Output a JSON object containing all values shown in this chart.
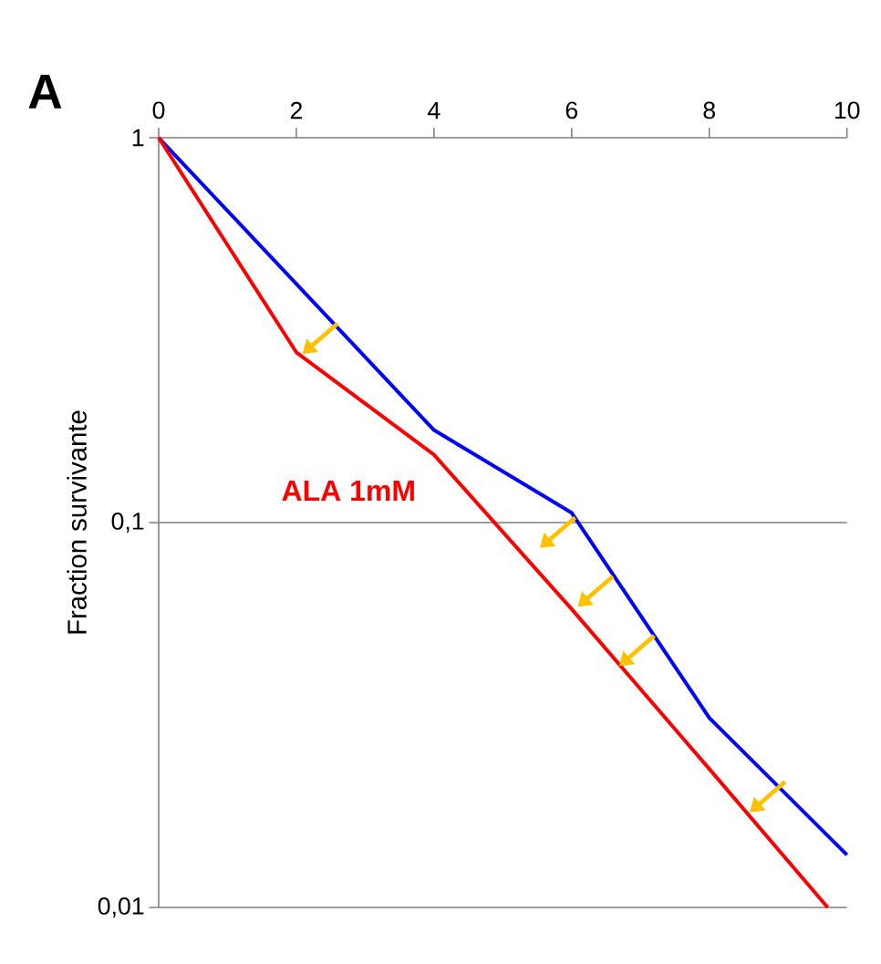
{
  "chart_data": {
    "type": "line",
    "annotations": [
      "A"
    ],
    "ylabel": "Fraction survivante",
    "log": "y",
    "grid": "y",
    "xlim": [
      0,
      10
    ],
    "xticks": [
      0,
      2,
      4,
      6,
      8,
      10
    ],
    "ylim": [
      0.01,
      1
    ],
    "yticks": [
      {
        "value": 1,
        "label": "1"
      },
      {
        "value": 0.1,
        "label": "0,1"
      },
      {
        "value": 0.01,
        "label": "0,01"
      }
    ],
    "series": [
      {
        "color": "#0000ff",
        "x": [
          0,
          4,
          6,
          8,
          10
        ],
        "values": [
          1,
          0.174,
          0.106,
          0.0311,
          0.0137
        ]
      },
      {
        "name": "ALA 1mM",
        "color": "#ff0000",
        "x": [
          0,
          2,
          4,
          6,
          8,
          9.72
        ],
        "values": [
          1,
          0.277,
          0.15,
          0.0596,
          0.0229,
          0.01
        ]
      }
    ]
  }
}
